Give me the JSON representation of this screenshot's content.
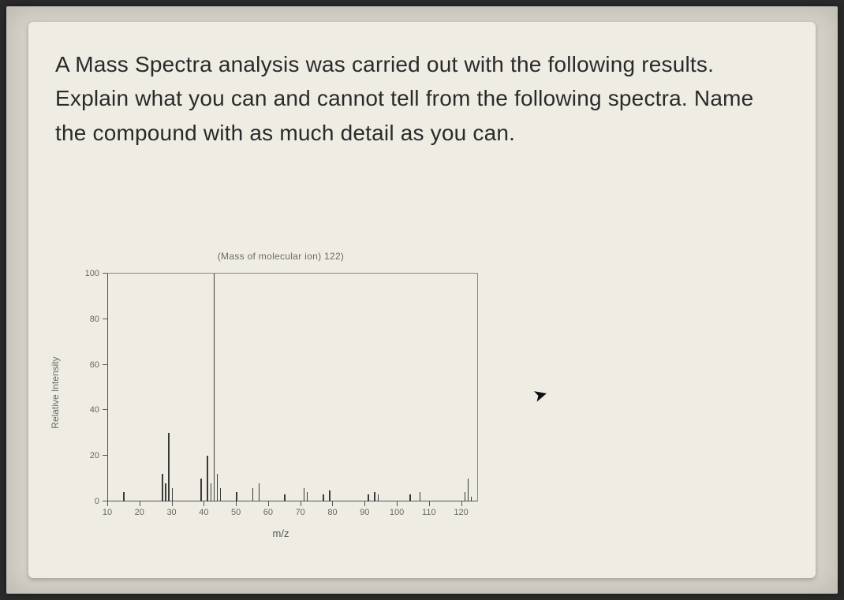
{
  "question": "A Mass Spectra analysis was carried out with the following results.  Explain what you can and cannot tell from the following spectra. Name the compound with as much detail as you can.",
  "chart": {
    "type": "mass-spectrum",
    "title": "(Mass of molecular ion)    122)",
    "xlabel": "m/z",
    "ylabel": "Relative Intensity",
    "xlim": [
      10,
      125
    ],
    "ylim": [
      0,
      100
    ],
    "xtick_step": 10,
    "ytick_step": 20,
    "xticks": [
      10,
      20,
      30,
      40,
      50,
      60,
      70,
      80,
      90,
      100,
      110,
      120
    ],
    "yticks": [
      0,
      20,
      40,
      60,
      80,
      100
    ],
    "peak_color": "#3a3a3a",
    "axis_color": "#555555",
    "tick_color": "#666666",
    "background_color": "#efece4",
    "peaks": [
      {
        "mz": 15,
        "intensity": 4
      },
      {
        "mz": 27,
        "intensity": 12
      },
      {
        "mz": 28,
        "intensity": 8
      },
      {
        "mz": 29,
        "intensity": 30
      },
      {
        "mz": 30,
        "intensity": 6
      },
      {
        "mz": 39,
        "intensity": 10
      },
      {
        "mz": 41,
        "intensity": 20
      },
      {
        "mz": 42,
        "intensity": 8
      },
      {
        "mz": 43,
        "intensity": 100
      },
      {
        "mz": 44,
        "intensity": 12
      },
      {
        "mz": 45,
        "intensity": 6
      },
      {
        "mz": 50,
        "intensity": 4
      },
      {
        "mz": 55,
        "intensity": 6
      },
      {
        "mz": 57,
        "intensity": 8
      },
      {
        "mz": 65,
        "intensity": 3
      },
      {
        "mz": 71,
        "intensity": 6
      },
      {
        "mz": 72,
        "intensity": 4
      },
      {
        "mz": 77,
        "intensity": 3
      },
      {
        "mz": 79,
        "intensity": 5
      },
      {
        "mz": 91,
        "intensity": 3
      },
      {
        "mz": 93,
        "intensity": 4
      },
      {
        "mz": 94,
        "intensity": 3
      },
      {
        "mz": 104,
        "intensity": 3
      },
      {
        "mz": 107,
        "intensity": 4
      },
      {
        "mz": 121,
        "intensity": 4
      },
      {
        "mz": 122,
        "intensity": 10
      },
      {
        "mz": 123,
        "intensity": 2
      }
    ]
  },
  "cursor_glyph": "➤"
}
